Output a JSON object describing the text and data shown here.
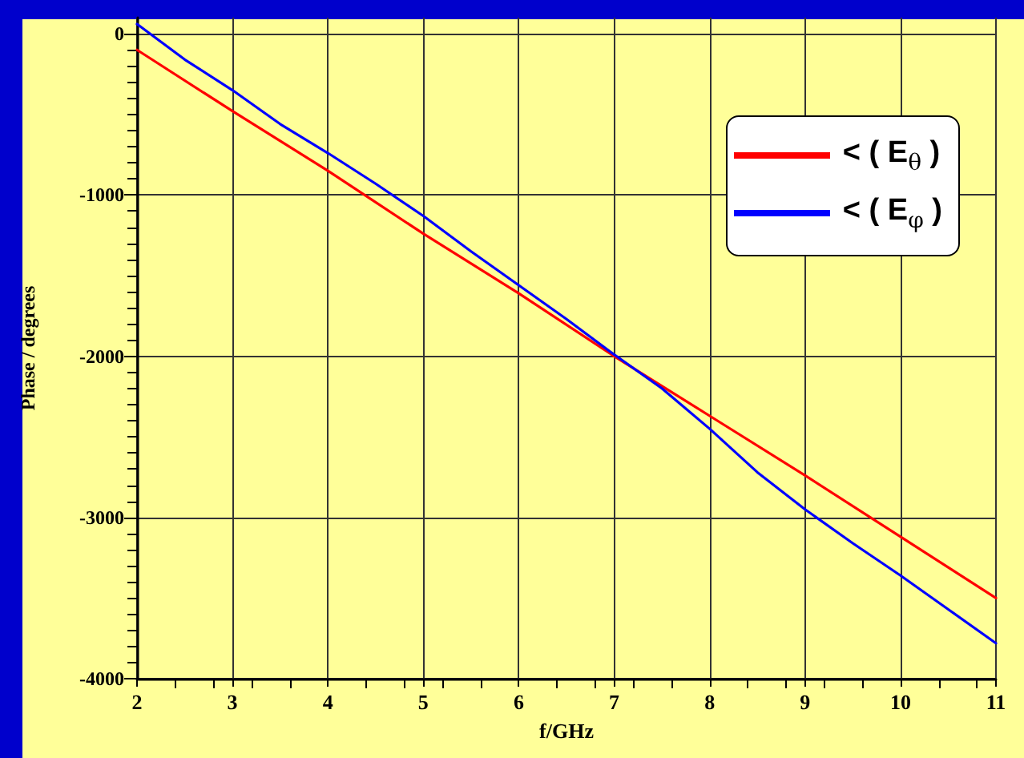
{
  "chart_data": {
    "type": "line",
    "xlabel": "f/GHz",
    "ylabel": "Phase / degrees",
    "xlim": [
      2,
      11
    ],
    "xticks": [
      2,
      3,
      4,
      5,
      6,
      7,
      8,
      9,
      10,
      11
    ],
    "ylim": [
      -4000,
      100
    ],
    "yticks": [
      -4000,
      -3000,
      -2000,
      -1000,
      0
    ],
    "grid": true,
    "legend": "top right",
    "marker": "none",
    "line_style": "solid",
    "series": [
      {
        "name": "< ( E$_{θ}$ )",
        "color": "#ff0000",
        "x": [
          2,
          3,
          4,
          5,
          6,
          7,
          8,
          9,
          10,
          11
        ],
        "values": [
          -100,
          -480,
          -850,
          -1240,
          -1610,
          -2000,
          -2370,
          -2740,
          -3120,
          -3500
        ]
      },
      {
        "name": "< ( E$_{φ}$ )",
        "color": "#0000ff",
        "x": [
          2,
          2.5,
          3,
          3.5,
          4,
          4.5,
          5,
          5.5,
          6,
          6.5,
          7,
          7.5,
          8,
          8.5,
          9,
          9.5,
          10,
          10.5,
          11
        ],
        "values": [
          60,
          -160,
          -350,
          -560,
          -740,
          -930,
          -1130,
          -1350,
          -1560,
          -1770,
          -1990,
          -2200,
          -2450,
          -2720,
          -2950,
          -3160,
          -3360,
          -3570,
          -3780
        ]
      }
    ]
  }
}
